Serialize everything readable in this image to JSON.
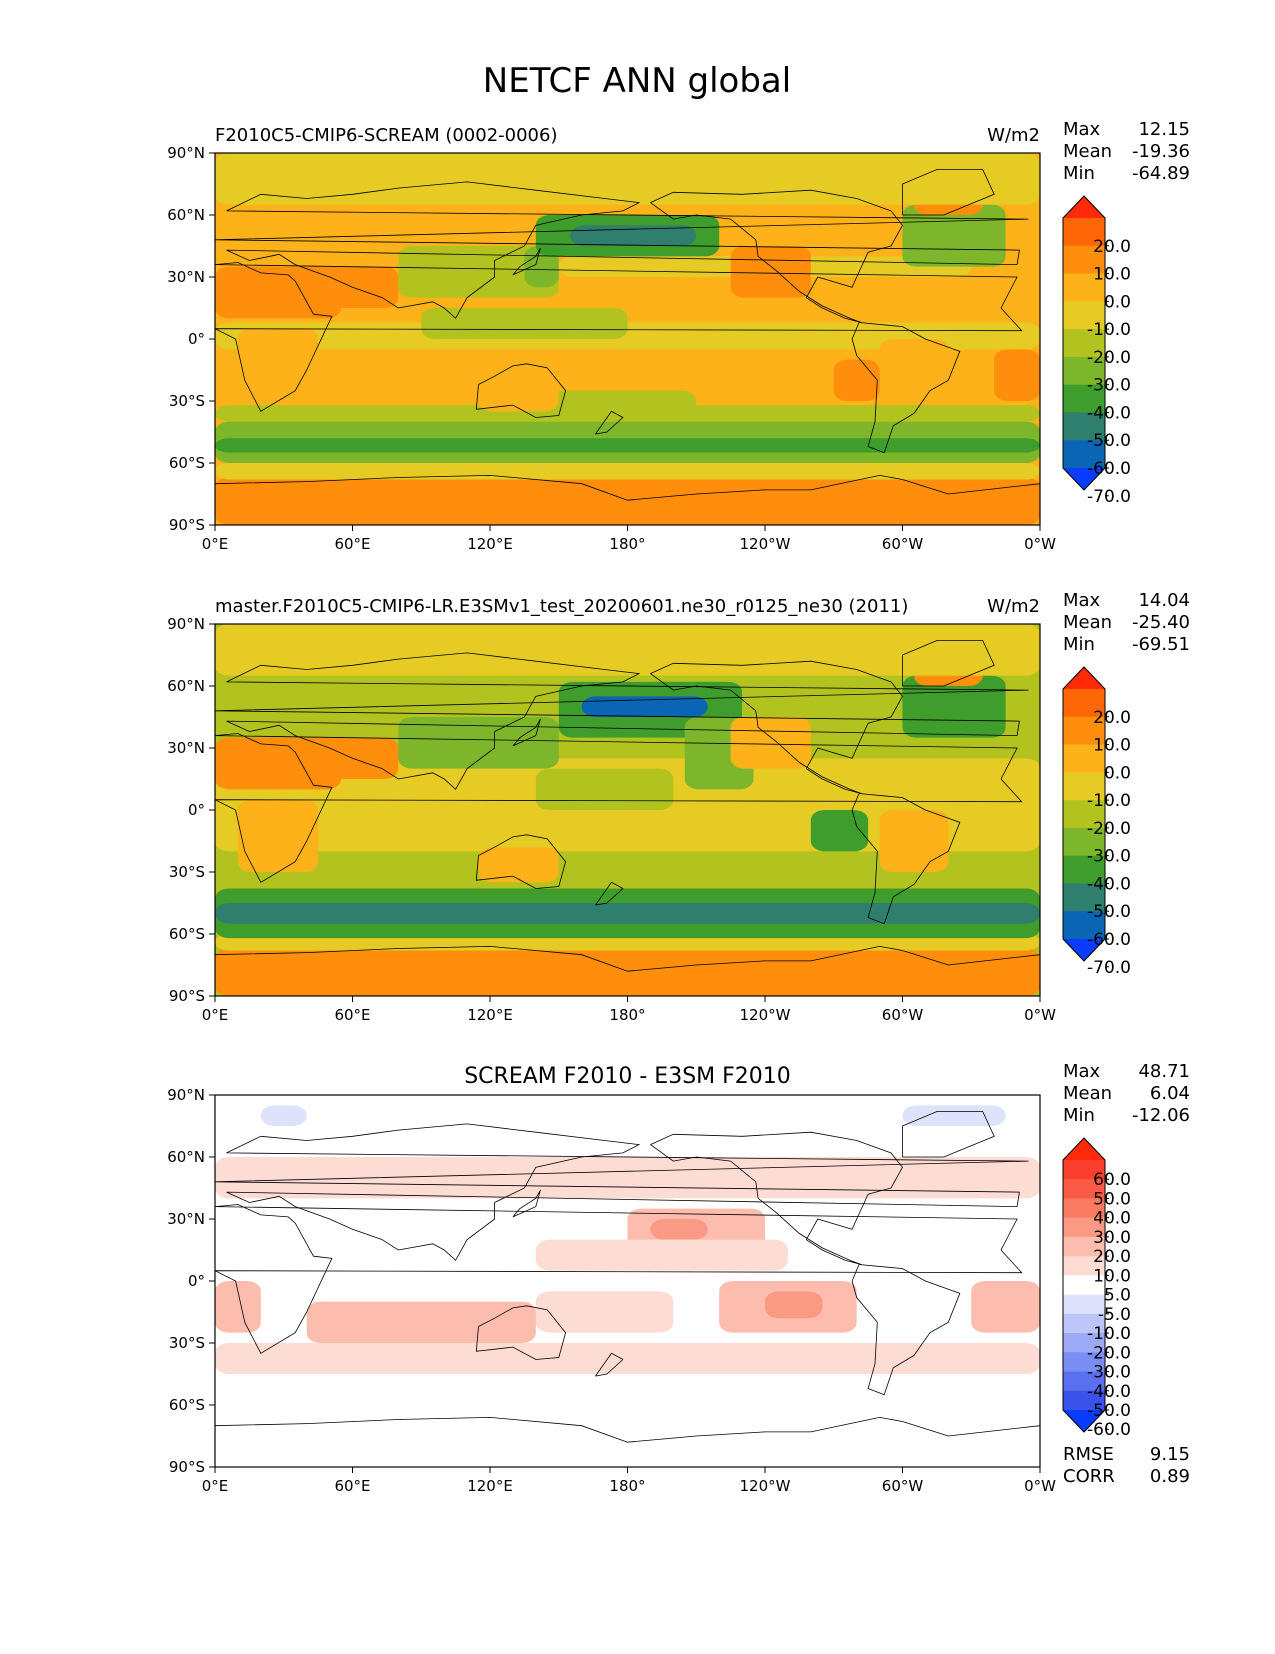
{
  "title": "NETCF ANN global",
  "x_ticks": [
    "0°E",
    "60°E",
    "120°E",
    "180°",
    "120°W",
    "60°W",
    "0°W"
  ],
  "y_ticks": [
    "90°N",
    "60°N",
    "30°N",
    "0°",
    "30°S",
    "60°S",
    "90°S"
  ],
  "panels": [
    {
      "id": "test",
      "title_left": "F2010C5-CMIP6-SCREAM (0002-0006)",
      "title_center": "",
      "units": "W/m2",
      "stats": [
        {
          "label": "Max",
          "value": "12.15"
        },
        {
          "label": "Mean",
          "value": "-19.36"
        },
        {
          "label": "Min",
          "value": "-64.89"
        }
      ],
      "colorbar": {
        "labels": [
          "20.0",
          "10.0",
          "0.0",
          "-10.0",
          "-20.0",
          "-30.0",
          "-40.0",
          "-50.0",
          "-60.0",
          "-70.0"
        ],
        "colors": [
          "#ff2a0a",
          "#fe6608",
          "#fe8e0b",
          "#fdb21a",
          "#e6cb25",
          "#b2c31f",
          "#7db62a",
          "#3f9e2b",
          "#2e7f6e",
          "#0a66b4",
          "#0a3cff"
        ]
      }
    },
    {
      "id": "ref",
      "title_left": "master.F2010C5-CMIP6-LR.E3SMv1_test_20200601.ne30_r0125_ne30 (2011)",
      "title_center": "",
      "units": "W/m2",
      "stats": [
        {
          "label": "Max",
          "value": "14.04"
        },
        {
          "label": "Mean",
          "value": "-25.40"
        },
        {
          "label": "Min",
          "value": "-69.51"
        }
      ],
      "colorbar": {
        "labels": [
          "20.0",
          "10.0",
          "0.0",
          "-10.0",
          "-20.0",
          "-30.0",
          "-40.0",
          "-50.0",
          "-60.0",
          "-70.0"
        ],
        "colors": [
          "#ff2a0a",
          "#fe6608",
          "#fe8e0b",
          "#fdb21a",
          "#e6cb25",
          "#b2c31f",
          "#7db62a",
          "#3f9e2b",
          "#2e7f6e",
          "#0a66b4",
          "#0a3cff"
        ]
      }
    },
    {
      "id": "diff",
      "title_left": "",
      "title_center": "SCREAM F2010 - E3SM F2010",
      "units": "",
      "stats": [
        {
          "label": "Max",
          "value": "48.71"
        },
        {
          "label": "Mean",
          "value": "6.04"
        },
        {
          "label": "Min",
          "value": "-12.06"
        }
      ],
      "colorbar": {
        "labels": [
          "60.0",
          "50.0",
          "40.0",
          "30.0",
          "20.0",
          "10.0",
          "5.0",
          "-5.0",
          "-10.0",
          "-20.0",
          "-30.0",
          "-40.0",
          "-50.0",
          "-60.0"
        ],
        "colors": [
          "#ff2a0a",
          "#fc3f2c",
          "#fb5a46",
          "#fb7a62",
          "#fb9a84",
          "#fcbcae",
          "#fddcd4",
          "#ffffff",
          "#dde3fb",
          "#bcc6f8",
          "#9aaaf5",
          "#7a8df2",
          "#5a70ee",
          "#3a52ea",
          "#0a3cff"
        ]
      },
      "bottom_stats": [
        {
          "label": "RMSE",
          "value": "9.15"
        },
        {
          "label": "CORR",
          "value": "0.89"
        }
      ]
    }
  ],
  "chart_data": [
    {
      "type": "heatmap",
      "title": "F2010C5-CMIP6-SCREAM (0002-0006)",
      "units": "W/m2",
      "xlim": [
        0,
        360
      ],
      "ylim": [
        -90,
        90
      ],
      "contour_levels": [
        -70,
        -60,
        -50,
        -40,
        -30,
        -20,
        -10,
        0,
        10,
        20
      ],
      "stats": {
        "max": 12.15,
        "mean": -19.36,
        "min": -64.89
      },
      "background_value": -10,
      "regions": [
        {
          "lon": [
            0,
            360
          ],
          "lat": [
            -90,
            -67
          ],
          "value": 5
        },
        {
          "lon": [
            0,
            360
          ],
          "lat": [
            -68,
            -60
          ],
          "value": -15
        },
        {
          "lon": [
            0,
            360
          ],
          "lat": [
            -60,
            -40
          ],
          "value": -40
        },
        {
          "lon": [
            0,
            360
          ],
          "lat": [
            -55,
            -48
          ],
          "value": -50
        },
        {
          "lon": [
            0,
            360
          ],
          "lat": [
            -40,
            -32
          ],
          "value": -25
        },
        {
          "lon": [
            140,
            210
          ],
          "lat": [
            -35,
            -25
          ],
          "value": -30
        },
        {
          "lon": [
            0,
            360
          ],
          "lat": [
            -20,
            25
          ],
          "value": -8
        },
        {
          "lon": [
            0,
            360
          ],
          "lat": [
            -5,
            8
          ],
          "value": -18
        },
        {
          "lon": [
            90,
            180
          ],
          "lat": [
            0,
            15
          ],
          "value": -25
        },
        {
          "lon": [
            0,
            55
          ],
          "lat": [
            10,
            35
          ],
          "value": 5
        },
        {
          "lon": [
            40,
            80
          ],
          "lat": [
            15,
            35
          ],
          "value": 0
        },
        {
          "lon": [
            80,
            150
          ],
          "lat": [
            20,
            45
          ],
          "value": -30
        },
        {
          "lon": [
            135,
            150
          ],
          "lat": [
            25,
            45
          ],
          "value": -40
        },
        {
          "lon": [
            150,
            330
          ],
          "lat": [
            30,
            40
          ],
          "value": -20
        },
        {
          "lon": [
            140,
            220
          ],
          "lat": [
            40,
            60
          ],
          "value": -45
        },
        {
          "lon": [
            155,
            210
          ],
          "lat": [
            45,
            55
          ],
          "value": -60
        },
        {
          "lon": [
            225,
            260
          ],
          "lat": [
            20,
            45
          ],
          "value": 0
        },
        {
          "lon": [
            300,
            345
          ],
          "lat": [
            35,
            65
          ],
          "value": -40
        },
        {
          "lon": [
            305,
            335
          ],
          "lat": [
            60,
            85
          ],
          "value": 5
        },
        {
          "lon": [
            0,
            360
          ],
          "lat": [
            65,
            90
          ],
          "value": -12
        },
        {
          "lon": [
            290,
            320
          ],
          "lat": [
            -30,
            0
          ],
          "value": -5
        },
        {
          "lon": [
            115,
            150
          ],
          "lat": [
            -35,
            -18
          ],
          "value": -2
        },
        {
          "lon": [
            10,
            45
          ],
          "lat": [
            -30,
            5
          ],
          "value": -5
        },
        {
          "lon": [
            340,
            360
          ],
          "lat": [
            -30,
            -5
          ],
          "value": 0
        },
        {
          "lon": [
            270,
            290
          ],
          "lat": [
            -30,
            -10
          ],
          "value": 2
        }
      ]
    },
    {
      "type": "heatmap",
      "title": "master.F2010C5-CMIP6-LR.E3SMv1_test_20200601.ne30_r0125_ne30 (2011)",
      "units": "W/m2",
      "xlim": [
        0,
        360
      ],
      "ylim": [
        -90,
        90
      ],
      "contour_levels": [
        -70,
        -60,
        -50,
        -40,
        -30,
        -20,
        -10,
        0,
        10,
        20
      ],
      "stats": {
        "max": 14.04,
        "mean": -25.4,
        "min": -69.51
      },
      "background_value": -22,
      "regions": [
        {
          "lon": [
            0,
            360
          ],
          "lat": [
            -90,
            -67
          ],
          "value": 5
        },
        {
          "lon": [
            0,
            360
          ],
          "lat": [
            -68,
            -60
          ],
          "value": -15
        },
        {
          "lon": [
            0,
            360
          ],
          "lat": [
            -62,
            -38
          ],
          "value": -45
        },
        {
          "lon": [
            0,
            360
          ],
          "lat": [
            -55,
            -45
          ],
          "value": -55
        },
        {
          "lon": [
            0,
            360
          ],
          "lat": [
            -38,
            -28
          ],
          "value": -30
        },
        {
          "lon": [
            0,
            360
          ],
          "lat": [
            -20,
            25
          ],
          "value": -20
        },
        {
          "lon": [
            0,
            55
          ],
          "lat": [
            10,
            35
          ],
          "value": 5
        },
        {
          "lon": [
            40,
            80
          ],
          "lat": [
            15,
            35
          ],
          "value": 0
        },
        {
          "lon": [
            80,
            150
          ],
          "lat": [
            20,
            45
          ],
          "value": -35
        },
        {
          "lon": [
            150,
            230
          ],
          "lat": [
            35,
            62
          ],
          "value": -50
        },
        {
          "lon": [
            160,
            215
          ],
          "lat": [
            45,
            55
          ],
          "value": -65
        },
        {
          "lon": [
            205,
            235
          ],
          "lat": [
            10,
            45
          ],
          "value": -40
        },
        {
          "lon": [
            225,
            260
          ],
          "lat": [
            20,
            45
          ],
          "value": -5
        },
        {
          "lon": [
            300,
            345
          ],
          "lat": [
            35,
            65
          ],
          "value": -45
        },
        {
          "lon": [
            305,
            335
          ],
          "lat": [
            60,
            85
          ],
          "value": 5
        },
        {
          "lon": [
            0,
            360
          ],
          "lat": [
            65,
            90
          ],
          "value": -12
        },
        {
          "lon": [
            290,
            320
          ],
          "lat": [
            -30,
            0
          ],
          "value": -5
        },
        {
          "lon": [
            115,
            150
          ],
          "lat": [
            -35,
            -18
          ],
          "value": -2
        },
        {
          "lon": [
            10,
            45
          ],
          "lat": [
            -30,
            5
          ],
          "value": -10
        },
        {
          "lon": [
            260,
            285
          ],
          "lat": [
            -20,
            0
          ],
          "value": -45
        },
        {
          "lon": [
            140,
            200
          ],
          "lat": [
            0,
            20
          ],
          "value": -30
        }
      ]
    },
    {
      "type": "heatmap",
      "title": "SCREAM F2010 - E3SM F2010",
      "xlim": [
        0,
        360
      ],
      "ylim": [
        -90,
        90
      ],
      "contour_levels": [
        -60,
        -50,
        -40,
        -30,
        -20,
        -10,
        -5,
        5,
        10,
        20,
        30,
        40,
        50,
        60
      ],
      "stats": {
        "max": 48.71,
        "mean": 6.04,
        "min": -12.06,
        "rmse": 9.15,
        "corr": 0.89
      },
      "background_value": 0,
      "regions": [
        {
          "lon": [
            0,
            360
          ],
          "lat": [
            -45,
            -30
          ],
          "value": 7
        },
        {
          "lon": [
            40,
            140
          ],
          "lat": [
            -30,
            -10
          ],
          "value": 10
        },
        {
          "lon": [
            140,
            200
          ],
          "lat": [
            -25,
            -5
          ],
          "value": 8
        },
        {
          "lon": [
            220,
            280
          ],
          "lat": [
            -25,
            0
          ],
          "value": 15
        },
        {
          "lon": [
            240,
            265
          ],
          "lat": [
            -18,
            -5
          ],
          "value": 25
        },
        {
          "lon": [
            180,
            240
          ],
          "lat": [
            15,
            35
          ],
          "value": 12
        },
        {
          "lon": [
            190,
            215
          ],
          "lat": [
            20,
            30
          ],
          "value": 25
        },
        {
          "lon": [
            330,
            360
          ],
          "lat": [
            -25,
            0
          ],
          "value": 15
        },
        {
          "lon": [
            0,
            20
          ],
          "lat": [
            -25,
            0
          ],
          "value": 15
        },
        {
          "lon": [
            0,
            360
          ],
          "lat": [
            40,
            60
          ],
          "value": 7
        },
        {
          "lon": [
            140,
            250
          ],
          "lat": [
            5,
            20
          ],
          "value": 7
        },
        {
          "lon": [
            20,
            40
          ],
          "lat": [
            75,
            85
          ],
          "value": -7
        },
        {
          "lon": [
            300,
            345
          ],
          "lat": [
            75,
            85
          ],
          "value": -7
        }
      ]
    }
  ]
}
